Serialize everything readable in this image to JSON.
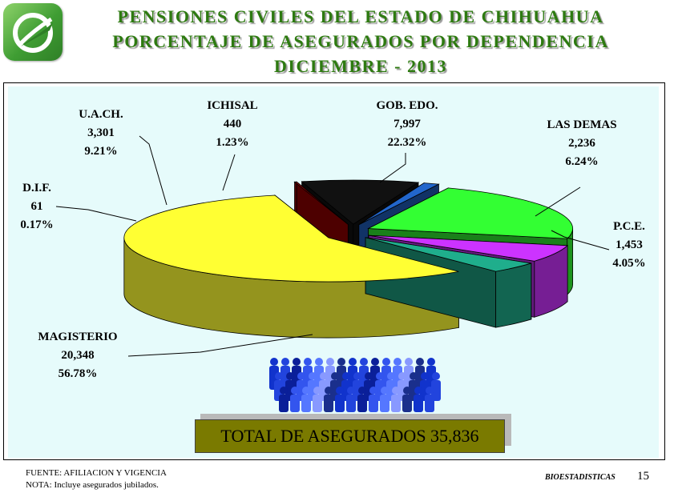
{
  "header": {
    "title_line1": "PENSIONES CIVILES DEL ESTADO DE CHIHUAHUA",
    "title_line2": "PORCENTAJE DE ASEGURADOS POR DEPENDENCIA",
    "title_line3": "DICIEMBRE - 2013"
  },
  "chart_data": {
    "type": "pie",
    "title": "PORCENTAJE DE ASEGURADOS POR DEPENDENCIA",
    "slices": [
      {
        "key": "gob",
        "name": "GOB. EDO.",
        "value": 7997,
        "value_label": "7,997",
        "percent": 22.32,
        "percent_label": "22.32%",
        "color": "#33ff33"
      },
      {
        "key": "demas",
        "name": "LAS DEMAS",
        "value": 2236,
        "value_label": "2,236",
        "percent": 6.24,
        "percent_label": "6.24%",
        "color": "#cc33ff"
      },
      {
        "key": "pce",
        "name": "P.C.E.",
        "value": 1453,
        "value_label": "1,453",
        "percent": 4.05,
        "percent_label": "4.05%",
        "color": "#1fae8c"
      },
      {
        "key": "mag",
        "name": "MAGISTERIO",
        "value": 20348,
        "value_label": "20,348",
        "percent": 56.78,
        "percent_label": "56.78%",
        "color": "#ffff33"
      },
      {
        "key": "dif",
        "name": "D.I.F.",
        "value": 61,
        "value_label": "61",
        "percent": 0.17,
        "percent_label": "0.17%",
        "color": "#990000"
      },
      {
        "key": "uach",
        "name": "U.A.CH.",
        "value": 3301,
        "value_label": "3,301",
        "percent": 9.21,
        "percent_label": "9.21%",
        "color": "#111111"
      },
      {
        "key": "ichisal",
        "name": "ICHISAL",
        "value": 440,
        "value_label": "440",
        "percent": 1.23,
        "percent_label": "1.23%",
        "color": "#2266cc"
      }
    ]
  },
  "total": {
    "label": "TOTAL DE ASEGURADOS 35,836"
  },
  "footer": {
    "source": "FUENTE: AFILIACION Y VIGENCIA",
    "note": "NOTA: Incluye asegurados jubilados.",
    "dept": "BIOESTADISTICAS",
    "page": "15"
  },
  "icons": {
    "logo": "pensiones-logo-icon",
    "crowd": "crowd-people-icon"
  }
}
